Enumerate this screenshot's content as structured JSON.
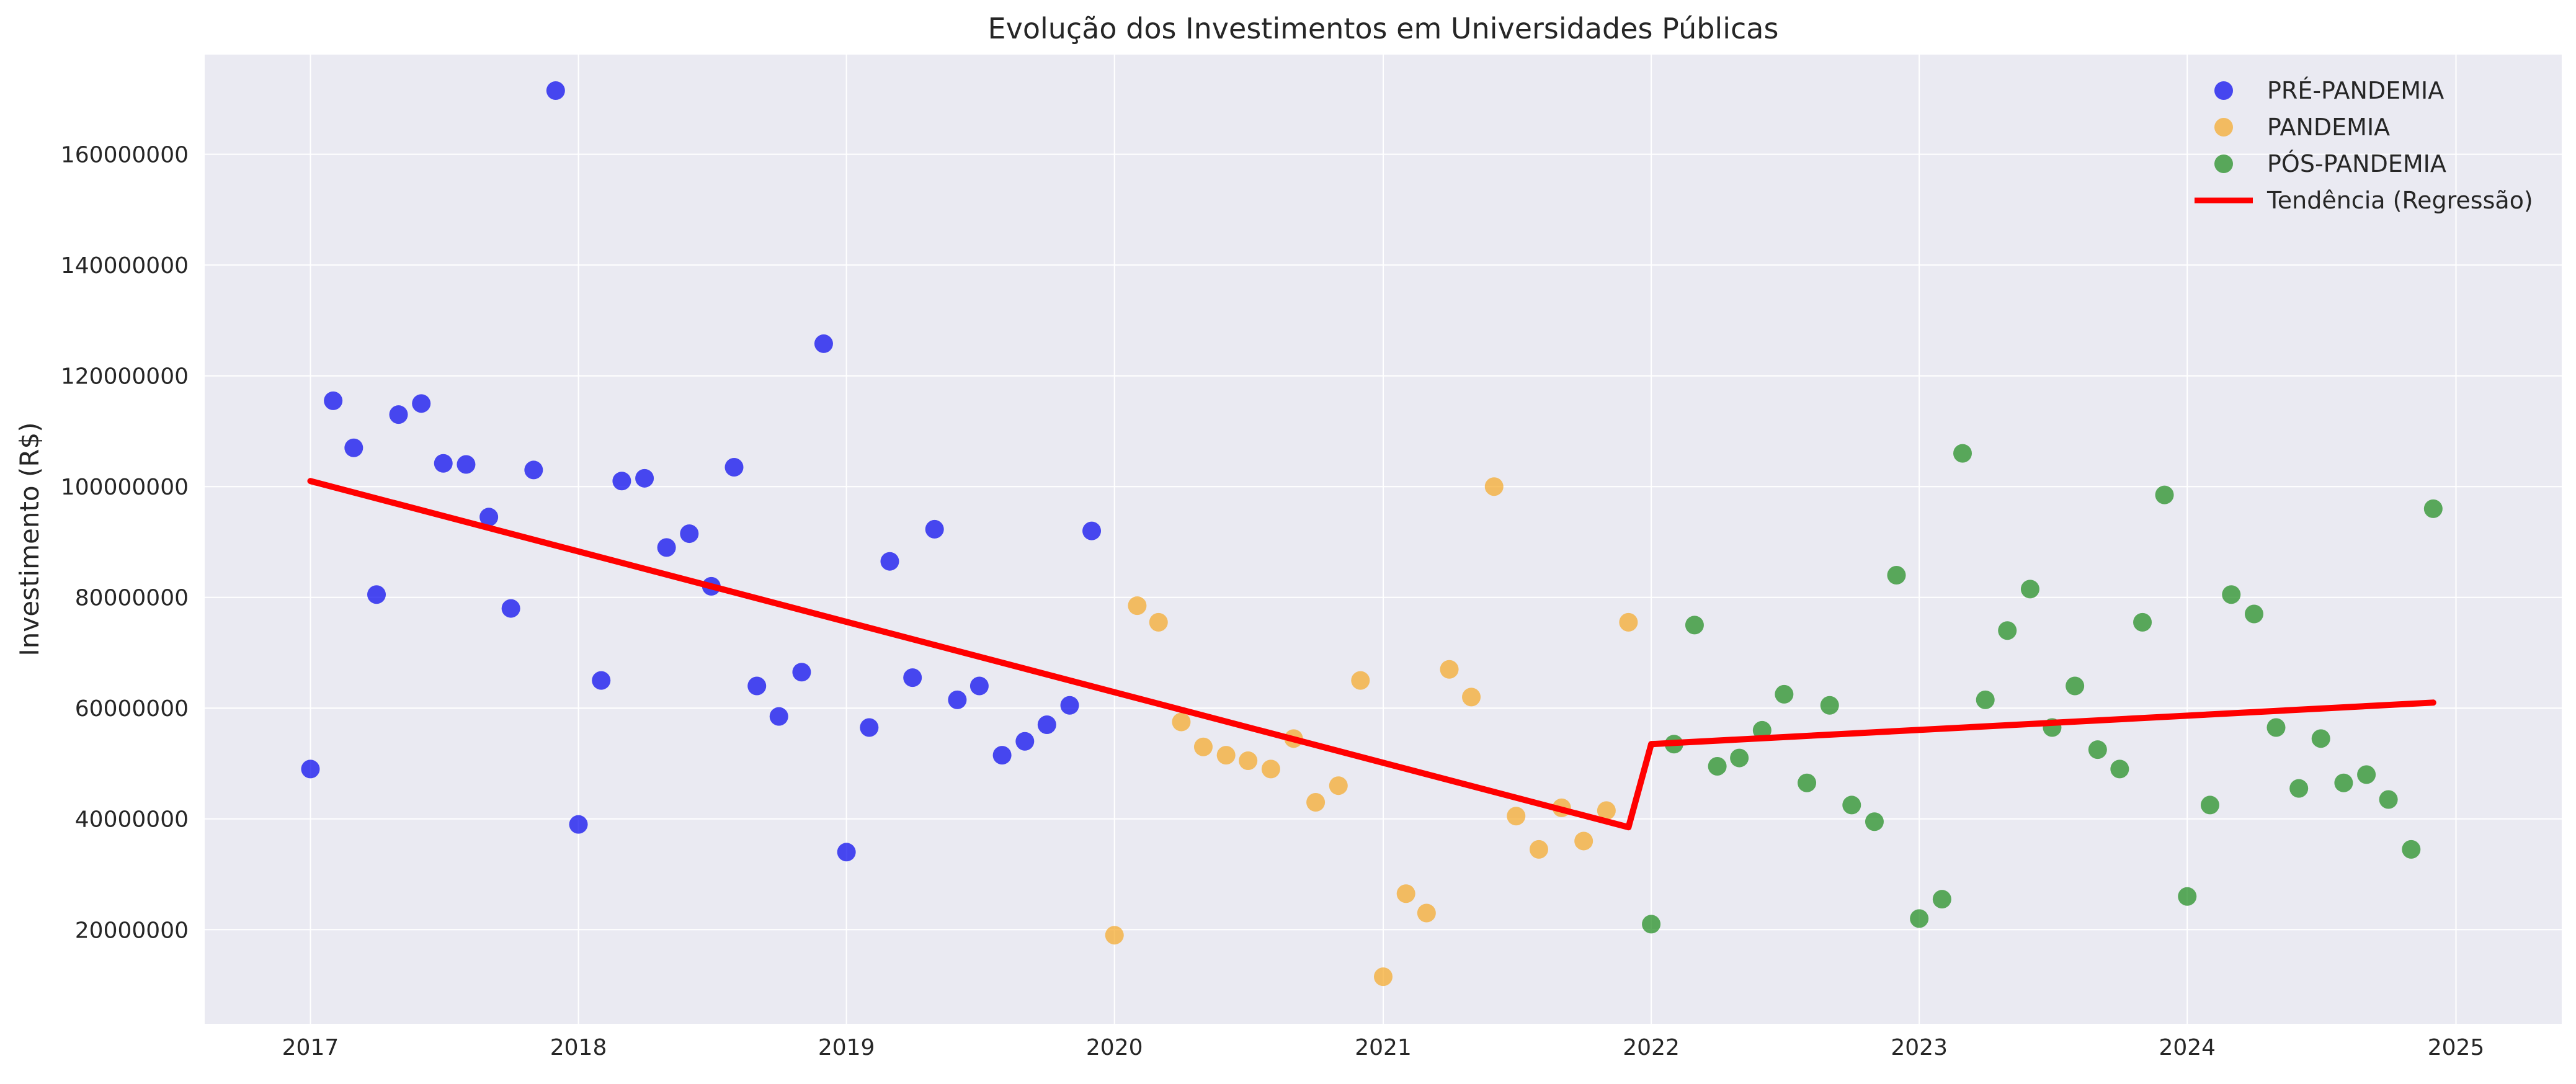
{
  "chart_data": {
    "type": "scatter",
    "title": "Evolução dos Investimentos em Universidades Públicas",
    "xlabel": "",
    "ylabel": "Investimento (R$)",
    "xlim": [
      "2016-08-10",
      "2025-05-25"
    ],
    "ylim": [
      3000000,
      178000000
    ],
    "x_ticks": [
      "2017",
      "2018",
      "2019",
      "2020",
      "2021",
      "2022",
      "2023",
      "2024",
      "2025"
    ],
    "y_ticks": [
      20000000,
      40000000,
      60000000,
      80000000,
      100000000,
      120000000,
      140000000,
      160000000
    ],
    "y_tick_labels": [
      "20000000",
      "40000000",
      "60000000",
      "80000000",
      "100000000",
      "120000000",
      "140000000",
      "160000000"
    ],
    "grid": true,
    "legend_position": "top-right",
    "series": [
      {
        "name": "PRÉ-PANDEMIA",
        "color": "#0000ee",
        "x": [
          "2017-01",
          "2017-02",
          "2017-03",
          "2017-04",
          "2017-05",
          "2017-06",
          "2017-07",
          "2017-08",
          "2017-09",
          "2017-10",
          "2017-11",
          "2017-12",
          "2018-01",
          "2018-02",
          "2018-03",
          "2018-04",
          "2018-05",
          "2018-06",
          "2018-07",
          "2018-08",
          "2018-09",
          "2018-10",
          "2018-11",
          "2018-12",
          "2019-01",
          "2019-02",
          "2019-03",
          "2019-04",
          "2019-05",
          "2019-06",
          "2019-07",
          "2019-08",
          "2019-09",
          "2019-10",
          "2019-11",
          "2019-12"
        ],
        "y": [
          49000000,
          115500000,
          107000000,
          80500000,
          113000000,
          115000000,
          104200000,
          104000000,
          94500000,
          78000000,
          103000000,
          171500000,
          39000000,
          65000000,
          101000000,
          101500000,
          89000000,
          91500000,
          82000000,
          103500000,
          64000000,
          58500000,
          66500000,
          125800000,
          34000000,
          56500000,
          86500000,
          65500000,
          92300000,
          61500000,
          64000000,
          51500000,
          54000000,
          57000000,
          60500000,
          92000000
        ]
      },
      {
        "name": "PANDEMIA",
        "color": "#f5a623",
        "x": [
          "2020-01",
          "2020-02",
          "2020-03",
          "2020-04",
          "2020-05",
          "2020-06",
          "2020-07",
          "2020-08",
          "2020-09",
          "2020-10",
          "2020-11",
          "2020-12",
          "2021-01",
          "2021-02",
          "2021-03",
          "2021-04",
          "2021-05",
          "2021-06",
          "2021-07",
          "2021-08",
          "2021-09",
          "2021-10",
          "2021-11",
          "2021-12"
        ],
        "y": [
          19000000,
          78500000,
          75500000,
          57500000,
          53000000,
          51500000,
          50500000,
          49000000,
          54500000,
          43000000,
          46000000,
          65000000,
          11500000,
          26500000,
          23000000,
          67000000,
          62000000,
          100000000,
          40500000,
          34500000,
          42000000,
          36000000,
          41500000,
          75500000
        ]
      },
      {
        "name": "PÓS-PANDEMIA",
        "color": "#1a8a1a",
        "x": [
          "2022-01",
          "2022-02",
          "2022-03",
          "2022-04",
          "2022-05",
          "2022-06",
          "2022-07",
          "2022-08",
          "2022-09",
          "2022-10",
          "2022-11",
          "2022-12",
          "2023-01",
          "2023-02",
          "2023-03",
          "2023-04",
          "2023-05",
          "2023-06",
          "2023-07",
          "2023-08",
          "2023-09",
          "2023-10",
          "2023-11",
          "2023-12",
          "2024-01",
          "2024-02",
          "2024-03",
          "2024-04",
          "2024-05",
          "2024-06",
          "2024-07",
          "2024-08",
          "2024-09",
          "2024-10",
          "2024-11",
          "2024-12"
        ],
        "y": [
          21000000,
          53500000,
          75000000,
          49500000,
          51000000,
          56000000,
          62500000,
          46500000,
          60500000,
          42500000,
          39500000,
          84000000,
          22000000,
          25500000,
          106000000,
          61500000,
          74000000,
          81500000,
          56500000,
          64000000,
          52500000,
          49000000,
          75500000,
          98500000,
          26000000,
          42500000,
          80500000,
          77000000,
          56500000,
          45500000,
          54500000,
          46500000,
          48000000,
          43500000,
          34500000,
          96000000
        ]
      }
    ],
    "trend": {
      "name": "Tendência (Regressão)",
      "color": "#ff0000",
      "segments": [
        {
          "x": [
            "2017-01",
            "2021-12"
          ],
          "y": [
            101000000,
            38500000
          ]
        },
        {
          "x": [
            "2021-12",
            "2022-01"
          ],
          "y": [
            38500000,
            53500000
          ]
        },
        {
          "x": [
            "2022-01",
            "2024-12"
          ],
          "y": [
            53500000,
            61000000
          ]
        }
      ]
    }
  }
}
